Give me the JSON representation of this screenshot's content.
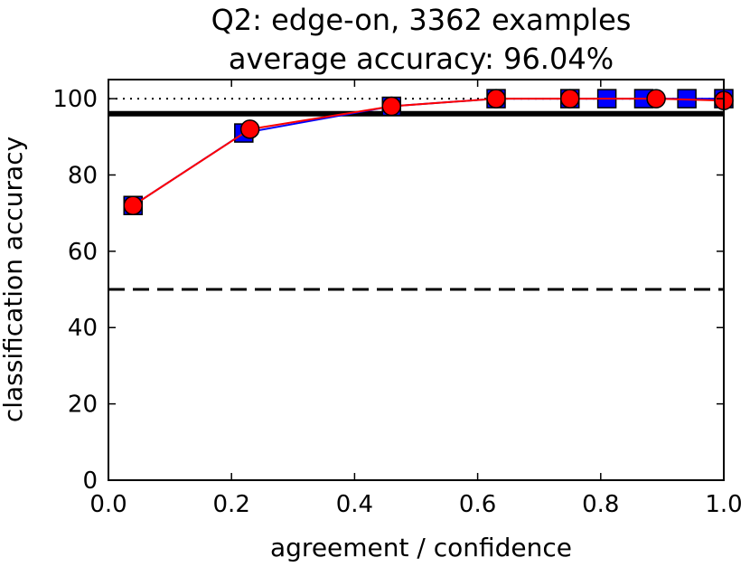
{
  "chart_data": {
    "type": "line",
    "title_line1": "Q2: edge-on, 3362 examples",
    "title_line2": "average accuracy: 96.04%",
    "xlabel": "agreement / confidence",
    "ylabel": "classification accuracy",
    "xlim": [
      0.0,
      1.0
    ],
    "ylim": [
      0,
      105
    ],
    "xticks": [
      "0.0",
      "0.2",
      "0.4",
      "0.6",
      "0.8",
      "1.0"
    ],
    "yticks": [
      "0",
      "20",
      "40",
      "60",
      "80",
      "100"
    ],
    "grid": false,
    "reference_lines": [
      {
        "style": "dotted",
        "y": 100
      },
      {
        "style": "solid-thick",
        "y": 96.04
      },
      {
        "style": "dashed",
        "y": 50
      }
    ],
    "series": [
      {
        "marker": "square",
        "color": "#0000ff",
        "x": [
          0.04,
          0.22,
          0.46,
          0.63,
          0.75,
          0.81,
          0.87,
          0.94,
          1.0
        ],
        "y": [
          72,
          91,
          98,
          100,
          100,
          100,
          100,
          100,
          100
        ]
      },
      {
        "marker": "circle",
        "color": "#ff0000",
        "x": [
          0.04,
          0.23,
          0.46,
          0.63,
          0.75,
          0.89,
          1.0
        ],
        "y": [
          72,
          92,
          98,
          100,
          100,
          100,
          99.5
        ]
      }
    ]
  }
}
